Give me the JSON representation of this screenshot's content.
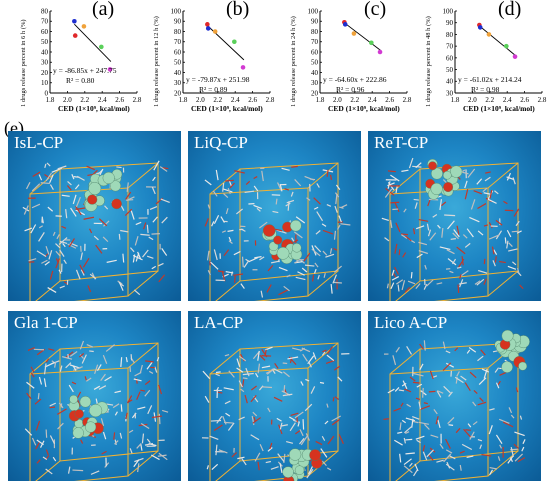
{
  "panel_e_label": "(e)",
  "chart_data": [
    {
      "type": "scatter",
      "panel": "(a)",
      "ylabel": "1 drugs release percent in 6 h (%)",
      "xlabel": "CED (1×10⁹, kcal/mol)",
      "equation": "y = -86.85x + 247.75",
      "r2": "R² = 0.80",
      "xlim": [
        1.8,
        2.8
      ],
      "ylim": [
        0,
        80
      ],
      "xticks": [
        "1.8",
        "2.0",
        "2.2",
        "2.4",
        "2.6",
        "2.8"
      ],
      "yticks": [
        "0",
        "10",
        "20",
        "30",
        "40",
        "50",
        "60",
        "70",
        "80"
      ],
      "points": [
        {
          "x": 2.08,
          "y": 70,
          "color": "#1f2fd0"
        },
        {
          "x": 2.09,
          "y": 56,
          "color": "#e0282a"
        },
        {
          "x": 2.19,
          "y": 65,
          "color": "#f0a23a"
        },
        {
          "x": 2.39,
          "y": 45,
          "color": "#5ad05a"
        },
        {
          "x": 2.49,
          "y": 23,
          "color": "#d23ad2"
        }
      ],
      "fit": {
        "slope": -86.85,
        "intercept": 247.75,
        "x_range": [
          2.08,
          2.5
        ]
      }
    },
    {
      "type": "scatter",
      "panel": "(b)",
      "ylabel": "1 drugs release percent in 12 h (%)",
      "xlabel": "CED (1×10⁹, kcal/mol)",
      "equation": "y = -79.87x + 251.98",
      "r2": "R² = 0.89",
      "xlim": [
        1.8,
        2.8
      ],
      "ylim": [
        20,
        100
      ],
      "xticks": [
        "1.8",
        "2.0",
        "2.2",
        "2.4",
        "2.6",
        "2.8"
      ],
      "yticks": [
        "20",
        "30",
        "40",
        "50",
        "60",
        "70",
        "80",
        "90",
        "100"
      ],
      "points": [
        {
          "x": 2.08,
          "y": 87,
          "color": "#e0282a"
        },
        {
          "x": 2.09,
          "y": 83,
          "color": "#1f2fd0"
        },
        {
          "x": 2.17,
          "y": 80,
          "color": "#f0a23a"
        },
        {
          "x": 2.39,
          "y": 70,
          "color": "#5ad05a"
        },
        {
          "x": 2.49,
          "y": 45,
          "color": "#d23ad2"
        }
      ],
      "fit": {
        "slope": -79.87,
        "intercept": 251.98,
        "x_range": [
          2.08,
          2.5
        ]
      }
    },
    {
      "type": "scatter",
      "panel": "(c)",
      "ylabel": "1 drugs release percent in 24 h (%)",
      "xlabel": "CED (1×10⁹, kcal/mol)",
      "equation": "y = -64.60x + 222.86",
      "r2": "R² = 0.96",
      "xlim": [
        1.8,
        2.8
      ],
      "ylim": [
        20,
        100
      ],
      "xticks": [
        "1.8",
        "2.0",
        "2.2",
        "2.4",
        "2.6",
        "2.8"
      ],
      "yticks": [
        "20",
        "30",
        "40",
        "50",
        "60",
        "70",
        "80",
        "90",
        "100"
      ],
      "points": [
        {
          "x": 2.08,
          "y": 89,
          "color": "#e0282a"
        },
        {
          "x": 2.09,
          "y": 87,
          "color": "#1f2fd0"
        },
        {
          "x": 2.19,
          "y": 78,
          "color": "#f0a23a"
        },
        {
          "x": 2.39,
          "y": 69,
          "color": "#5ad05a"
        },
        {
          "x": 2.49,
          "y": 60,
          "color": "#d23ad2"
        }
      ],
      "fit": {
        "slope": -64.6,
        "intercept": 222.86,
        "x_range": [
          2.08,
          2.5
        ]
      }
    },
    {
      "type": "scatter",
      "panel": "(d)",
      "ylabel": "1 drugs release percent in 48 h (%)",
      "xlabel": "CED (1×10⁹, kcal/mol)",
      "equation": "y = -61.02x + 214.24",
      "r2": "R² = 0.98",
      "xlim": [
        1.8,
        2.8
      ],
      "ylim": [
        30,
        100
      ],
      "xticks": [
        "1.8",
        "2.0",
        "2.2",
        "2.4",
        "2.6",
        "2.8"
      ],
      "yticks": [
        "30",
        "40",
        "50",
        "60",
        "70",
        "80",
        "90",
        "100"
      ],
      "points": [
        {
          "x": 2.08,
          "y": 88,
          "color": "#e0282a"
        },
        {
          "x": 2.09,
          "y": 86,
          "color": "#1f2fd0"
        },
        {
          "x": 2.19,
          "y": 80,
          "color": "#f0a23a"
        },
        {
          "x": 2.39,
          "y": 70,
          "color": "#5ad05a"
        },
        {
          "x": 2.49,
          "y": 61,
          "color": "#d23ad2"
        }
      ],
      "fit": {
        "slope": -61.02,
        "intercept": 214.24,
        "x_range": [
          2.08,
          2.5
        ]
      }
    }
  ],
  "molecular_panels": [
    {
      "title": "IsL-CP"
    },
    {
      "title": "LiQ-CP"
    },
    {
      "title": "ReT-CP"
    },
    {
      "title": "Gla 1-CP"
    },
    {
      "title": "LA-CP"
    },
    {
      "title": "Lico A-CP"
    }
  ]
}
